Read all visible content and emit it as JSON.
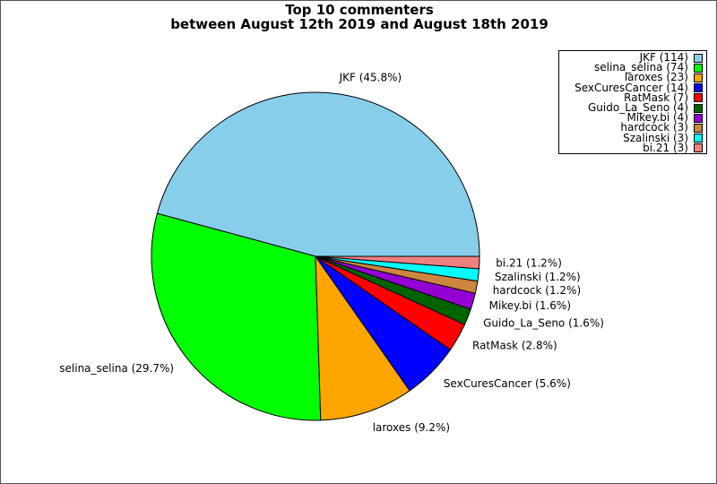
{
  "title": {
    "line1": "Top 10 commenters",
    "line2": "between August 12th 2019 and August 18th 2019"
  },
  "chart_data": {
    "type": "pie",
    "title": "Top 10 commenters between August 12th 2019 and August 18th 2019",
    "start_angle_deg": 0,
    "direction": "counterclockwise",
    "legend_position": "top-right",
    "slices": [
      {
        "name": "JKF",
        "value": 114,
        "percent_label": "45.8%",
        "color": "#87ceeb"
      },
      {
        "name": "selina_selina",
        "value": 74,
        "percent_label": "29.7%",
        "color": "#00ff00"
      },
      {
        "name": "laroxes",
        "value": 23,
        "percent_label": "9.2%",
        "color": "#ffa500"
      },
      {
        "name": "SexCuresCancer",
        "value": 14,
        "percent_label": "5.6%",
        "color": "#0000ff"
      },
      {
        "name": "RatMask",
        "value": 7,
        "percent_label": "2.8%",
        "color": "#ff0000"
      },
      {
        "name": "Guido_La_Seno",
        "value": 4,
        "percent_label": "1.6%",
        "color": "#006400"
      },
      {
        "name": "Mikey.bi",
        "value": 4,
        "percent_label": "1.6%",
        "color": "#9400d3"
      },
      {
        "name": "hardcock",
        "value": 3,
        "percent_label": "1.2%",
        "color": "#cd853f"
      },
      {
        "name": "Szalinski",
        "value": 3,
        "percent_label": "1.2%",
        "color": "#00ffff"
      },
      {
        "name": "bi.21",
        "value": 3,
        "percent_label": "1.2%",
        "color": "#f08080"
      }
    ]
  }
}
